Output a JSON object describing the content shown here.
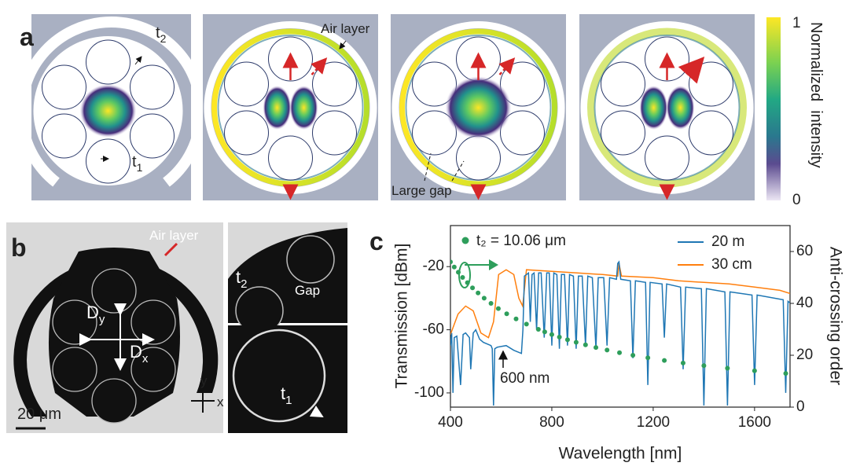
{
  "panel_a": {
    "label": "a",
    "t2": {
      "text": "t",
      "sub": "2"
    },
    "air_layer": "Air layer",
    "t1": {
      "text": "t",
      "sub": "1"
    },
    "large_gap": "Large gap",
    "colorbar": {
      "range": [
        0,
        1
      ],
      "ticks": [
        0,
        1
      ],
      "label": "Normalized  intensity"
    }
  },
  "panel_b": {
    "label": "b",
    "air_layer": "Air layer",
    "dy": {
      "text": "D",
      "sub": "y"
    },
    "dx": {
      "text": "D",
      "sub": "x"
    },
    "scale": "20 μm",
    "axis_y": "y",
    "axis_x": "x",
    "t2": {
      "text": "t",
      "sub": "2"
    },
    "gap": "Gap",
    "t1": {
      "text": "t",
      "sub": "1"
    }
  },
  "chart_data": {
    "type": "line",
    "panel_label": "c",
    "x_label": "Wavelength [nm]",
    "y_label": "Transmission [dBm]",
    "y2_label": "Anti-crossing order",
    "annotation": "600 nm",
    "xlim": [
      400,
      1740
    ],
    "xticks": [
      400,
      800,
      1200,
      1600
    ],
    "ylim": [
      -109,
      6
    ],
    "yticks": [
      -100,
      -60,
      -20
    ],
    "y2lim": [
      0,
      70
    ],
    "y2ticks": [
      0,
      20,
      40,
      60
    ],
    "series": [
      {
        "name": "20 m",
        "color": "#1f77b4",
        "x": [
          400,
          405,
          410,
          415,
          425,
          440,
          450,
          460,
          475,
          480,
          490,
          500,
          515,
          530,
          560,
          565,
          570,
          575,
          585,
          620,
          650,
          680,
          686,
          692,
          700,
          708,
          715,
          722,
          730,
          740,
          748,
          758,
          770,
          780,
          790,
          800,
          808,
          820,
          830,
          838,
          850,
          862,
          870,
          885,
          896,
          905,
          920,
          933,
          942,
          960,
          974,
          983,
          1005,
          1018,
          1028,
          1055,
          1060,
          1065,
          1072,
          1110,
          1120,
          1130,
          1170,
          1179,
          1188,
          1235,
          1244,
          1253,
          1308,
          1318,
          1328,
          1390,
          1400,
          1410,
          1483,
          1493,
          1503,
          1590,
          1600,
          1610,
          1713,
          1723,
          1732,
          1740
        ],
        "values": [
          -70,
          -62,
          -100,
          -65,
          -64,
          -95,
          -63,
          -62,
          -65,
          -85,
          -62,
          -60,
          -66,
          -68,
          -70,
          -72,
          -108,
          -72,
          -71,
          -70,
          -73,
          -75,
          -60,
          -26,
          -25,
          -24,
          -55,
          -25,
          -24,
          -60,
          -24,
          -24,
          -65,
          -24,
          -24,
          -70,
          -24,
          -25,
          -72,
          -25,
          -25,
          -70,
          -25,
          -26,
          -72,
          -26,
          -26,
          -70,
          -26,
          -27,
          -72,
          -27,
          -27,
          -70,
          -27,
          -28,
          -18,
          -17,
          -28,
          -29,
          -78,
          -29,
          -30,
          -95,
          -30,
          -31,
          -65,
          -31,
          -33,
          -85,
          -33,
          -34,
          -108,
          -34,
          -36,
          -108,
          -36,
          -38,
          -95,
          -38,
          -41,
          -100,
          -42,
          -43
        ]
      },
      {
        "name": "30 cm",
        "color": "#ff7f0e",
        "x": [
          400,
          430,
          460,
          490,
          520,
          550,
          570,
          590,
          620,
          650,
          670,
          685,
          700,
          800,
          900,
          1000,
          1060,
          1065,
          1075,
          1200,
          1300,
          1400,
          1500,
          1600,
          1700,
          1740
        ],
        "values": [
          -63,
          -50,
          -45,
          -48,
          -62,
          -65,
          -55,
          -25,
          -22,
          -25,
          -40,
          -45,
          -22,
          -23,
          -24,
          -25,
          -26,
          -18,
          -26,
          -27,
          -29,
          -30,
          -31,
          -33,
          -35,
          -37
        ]
      },
      {
        "name": "t₂ = 10.06 μm",
        "color": "#2e9e5b",
        "axis": "y2",
        "marker": "dot",
        "x": [
          400,
          415,
          431,
          448,
          467,
          487,
          509,
          533,
          560,
          589,
          622,
          659,
          700,
          747,
          772,
          800,
          830,
          862,
          896,
          933,
          974,
          1018,
          1067,
          1120,
          1179,
          1244,
          1318,
          1400,
          1493,
          1600,
          1723
        ],
        "values": [
          56,
          54,
          52,
          50,
          48,
          46,
          44,
          42,
          40,
          38,
          36,
          34,
          32,
          30,
          29,
          28,
          27,
          26,
          25,
          24,
          23,
          22,
          21,
          20,
          19,
          18,
          17,
          16,
          15,
          14,
          13
        ]
      }
    ],
    "legend": "upper right"
  }
}
